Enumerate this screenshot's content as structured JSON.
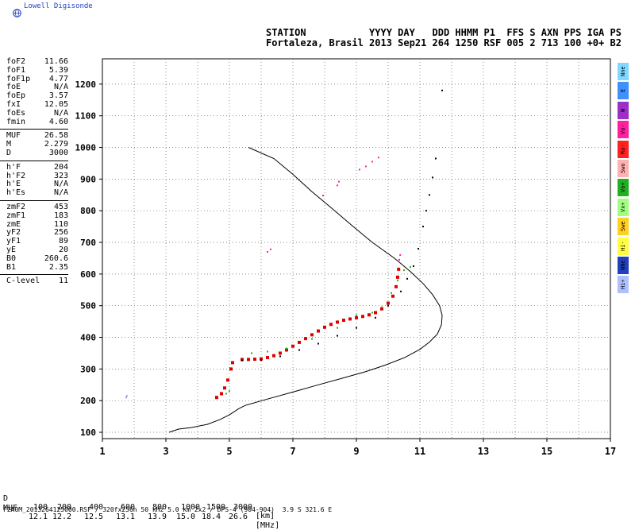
{
  "logo": {
    "text": "Lowell Digisonde",
    "icon": "globe-icon"
  },
  "header": {
    "line1": "STATION           YYYY DAY   DDD HHMM P1  FFS S AXN PPS IGA PS",
    "line2": "Fortaleza, Brasil 2013 Sep21 264 1250 RSF 005 2 713 100 +0+ B2"
  },
  "params": [
    {
      "label": "foF2",
      "value": "11.66"
    },
    {
      "label": "foF1",
      "value": "5.39"
    },
    {
      "label": "foF1p",
      "value": "4.77"
    },
    {
      "label": "foE",
      "value": "N/A"
    },
    {
      "label": "foEp",
      "value": "3.57"
    },
    {
      "label": "fxI",
      "value": "12.05"
    },
    {
      "label": "foEs",
      "value": "N/A"
    },
    {
      "label": "fmin",
      "value": "4.60"
    },
    {
      "label": "MUF",
      "value": "26.58"
    },
    {
      "label": "M",
      "value": "2.279"
    },
    {
      "label": "D",
      "value": "3000"
    },
    {
      "label": "h'F",
      "value": "204"
    },
    {
      "label": "h'F2",
      "value": "323"
    },
    {
      "label": "h'E",
      "value": "N/A"
    },
    {
      "label": "h'Es",
      "value": "N/A"
    },
    {
      "label": "zmF2",
      "value": "453"
    },
    {
      "label": "zmF1",
      "value": "183"
    },
    {
      "label": "zmE",
      "value": "110"
    },
    {
      "label": "yF2",
      "value": "256"
    },
    {
      "label": "yF1",
      "value": "89"
    },
    {
      "label": "yE",
      "value": "20"
    },
    {
      "label": "B0",
      "value": "260.6"
    },
    {
      "label": "B1",
      "value": "2.35"
    },
    {
      "label": "C-level",
      "value": "11"
    }
  ],
  "legend": [
    {
      "label": "Nne",
      "color": "#7fd8ff"
    },
    {
      "label": "E",
      "color": "#3f8fff"
    },
    {
      "label": "W",
      "color": "#9b2fc7"
    },
    {
      "label": "Vo-",
      "color": "#ff1fa0"
    },
    {
      "label": "Ro-",
      "color": "#ff2020"
    },
    {
      "label": "Swo",
      "color": "#ffb0b0"
    },
    {
      "label": "Vo+",
      "color": "#20b020"
    },
    {
      "label": "Vx+",
      "color": "#a0ff80"
    },
    {
      "label": "Swe",
      "color": "#ffd020"
    },
    {
      "label": "Hi-",
      "color": "#ffff40"
    },
    {
      "label": "NNe",
      "color": "#2040c0"
    },
    {
      "label": "Hi+",
      "color": "#b0c0ff"
    }
  ],
  "footer": {
    "d_label": "D",
    "d_values": [
      "100",
      "200",
      "400",
      "600",
      "800",
      "1000",
      "1500",
      "3000"
    ],
    "d_unit": "[km]",
    "muf_label": "MUF",
    "muf_values": [
      "12.1",
      "12.2",
      "12.5",
      "13.1",
      "13.9",
      "15.0",
      "18.4",
      "26.6"
    ],
    "muf_unit": "[MHz]",
    "file_line": "FZA0M_2013264125000.RSF / 320fx256h 50 kHz 5.0 km 2x2 / DPS-4 (904-904)  3.9 S 321.6 E"
  },
  "chart_data": {
    "type": "scatter",
    "xlim": [
      1,
      17
    ],
    "ylim": [
      80,
      1280
    ],
    "x_ticks": [
      "1",
      "3",
      "5",
      "7",
      "9",
      "11",
      "13",
      "15",
      "17"
    ],
    "y_ticks": [
      "100",
      "200",
      "300",
      "400",
      "500",
      "600",
      "700",
      "800",
      "900",
      "1000",
      "1100",
      "1200"
    ],
    "x_grid": [
      1,
      2,
      3,
      4,
      5,
      6,
      7,
      8,
      9,
      10,
      11,
      12,
      13,
      14,
      15,
      16,
      17
    ],
    "y_grid": [
      100,
      200,
      300,
      400,
      500,
      600,
      700,
      800,
      900,
      1000,
      1100,
      1200
    ],
    "grid": true,
    "profile_line": [
      [
        3.1,
        100
      ],
      [
        3.4,
        110
      ],
      [
        3.8,
        115
      ],
      [
        4.3,
        125
      ],
      [
        4.7,
        140
      ],
      [
        5.0,
        155
      ],
      [
        5.3,
        175
      ],
      [
        5.5,
        185
      ],
      [
        6.2,
        205
      ],
      [
        7.0,
        227
      ],
      [
        7.8,
        250
      ],
      [
        8.6,
        272
      ],
      [
        9.3,
        292
      ],
      [
        9.9,
        312
      ],
      [
        10.5,
        335
      ],
      [
        11.0,
        362
      ],
      [
        11.3,
        385
      ],
      [
        11.55,
        410
      ],
      [
        11.68,
        440
      ],
      [
        11.7,
        470
      ],
      [
        11.62,
        500
      ],
      [
        11.4,
        535
      ],
      [
        11.1,
        570
      ],
      [
        10.7,
        608
      ],
      [
        10.2,
        650
      ],
      [
        9.5,
        700
      ],
      [
        8.9,
        750
      ],
      [
        8.2,
        810
      ],
      [
        7.6,
        860
      ],
      [
        7.0,
        915
      ],
      [
        6.4,
        965
      ],
      [
        5.6,
        1000
      ]
    ],
    "series": [
      {
        "name": "Ro-",
        "color": "#e00000",
        "points": [
          [
            5.4,
            330
          ],
          [
            5.6,
            330
          ],
          [
            5.8,
            331
          ],
          [
            6.0,
            332
          ],
          [
            6.2,
            336
          ],
          [
            6.4,
            342
          ],
          [
            6.6,
            350
          ],
          [
            6.8,
            360
          ],
          [
            7.0,
            372
          ],
          [
            7.2,
            384
          ],
          [
            7.4,
            396
          ],
          [
            7.6,
            408
          ],
          [
            7.8,
            420
          ],
          [
            8.0,
            432
          ],
          [
            8.2,
            441
          ],
          [
            8.4,
            448
          ],
          [
            8.6,
            454
          ],
          [
            8.8,
            458
          ],
          [
            9.0,
            462
          ],
          [
            9.2,
            466
          ],
          [
            9.4,
            471
          ],
          [
            9.6,
            478
          ],
          [
            9.8,
            490
          ],
          [
            10.0,
            508
          ],
          [
            10.15,
            530
          ],
          [
            10.25,
            560
          ],
          [
            10.3,
            590
          ],
          [
            10.33,
            615
          ],
          [
            4.6,
            210
          ],
          [
            4.75,
            222
          ],
          [
            4.85,
            240
          ],
          [
            4.95,
            265
          ],
          [
            5.05,
            300
          ],
          [
            5.1,
            320
          ]
        ]
      },
      {
        "name": "Vo-",
        "color": "#ff1fa0",
        "points": [
          [
            6.2,
            670
          ],
          [
            6.3,
            678
          ],
          [
            7.95,
            848
          ],
          [
            8.4,
            880
          ],
          [
            8.45,
            892
          ],
          [
            9.1,
            930
          ],
          [
            9.3,
            940
          ],
          [
            9.5,
            955
          ],
          [
            9.7,
            968
          ],
          [
            10.35,
            645
          ],
          [
            10.38,
            660
          ]
        ]
      },
      {
        "name": "Vo+",
        "color": "#20b020",
        "points": [
          [
            4.9,
            222
          ],
          [
            5.0,
            230
          ],
          [
            5.7,
            350
          ],
          [
            6.2,
            355
          ],
          [
            6.8,
            365
          ],
          [
            7.6,
            395
          ],
          [
            8.4,
            430
          ],
          [
            9.0,
            470
          ],
          [
            9.5,
            478
          ],
          [
            9.8,
            495
          ],
          [
            10.1,
            540
          ],
          [
            10.3,
            580
          ],
          [
            10.5,
            612
          ],
          [
            10.7,
            622
          ]
        ]
      },
      {
        "name": "O-trace",
        "color": "#000000",
        "points": [
          [
            5.4,
            327
          ],
          [
            6.0,
            328
          ],
          [
            6.6,
            340
          ],
          [
            7.2,
            360
          ],
          [
            7.8,
            380
          ],
          [
            8.4,
            405
          ],
          [
            9.0,
            430
          ],
          [
            9.6,
            462
          ],
          [
            10.0,
            500
          ],
          [
            10.4,
            545
          ],
          [
            10.6,
            585
          ],
          [
            10.8,
            625
          ],
          [
            10.95,
            680
          ],
          [
            11.1,
            750
          ],
          [
            11.2,
            800
          ],
          [
            11.3,
            850
          ],
          [
            11.4,
            905
          ],
          [
            11.5,
            965
          ],
          [
            11.7,
            1180
          ]
        ]
      },
      {
        "name": "Hi+",
        "color": "#a090ff",
        "points": [
          [
            1.75,
            210
          ],
          [
            1.77,
            215
          ]
        ]
      }
    ]
  }
}
